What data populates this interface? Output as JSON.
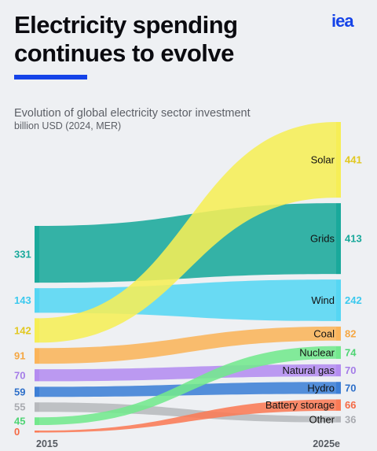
{
  "header": {
    "title": "Electricity spending continues to evolve",
    "logo": "iea",
    "subtitle": "Evolution of global electricity sector investment",
    "units": "billion USD (2024, MER)"
  },
  "chart_data": {
    "type": "sankey",
    "title": "Electricity spending continues to evolve",
    "subtitle": "Evolution of global electricity sector investment",
    "unit": "billion USD (2024, MER)",
    "x": [
      "2015",
      "2025e"
    ],
    "series": [
      {
        "name": "Solar",
        "values": [
          142,
          441
        ],
        "color": "#f6ee56"
      },
      {
        "name": "Grids",
        "values": [
          331,
          413
        ],
        "color": "#1aa99b"
      },
      {
        "name": "Wind",
        "values": [
          143,
          242
        ],
        "color": "#56d6f3"
      },
      {
        "name": "Coal",
        "values": [
          91,
          82
        ],
        "color": "#fbb45a"
      },
      {
        "name": "Nuclear",
        "values": [
          45,
          74
        ],
        "color": "#73e88d"
      },
      {
        "name": "Natural gas",
        "values": [
          70,
          70
        ],
        "color": "#b48cf0"
      },
      {
        "name": "Hydro",
        "values": [
          59,
          70
        ],
        "color": "#3d7fd6"
      },
      {
        "name": "Battery storage",
        "values": [
          0,
          66
        ],
        "color": "#fb7a55"
      },
      {
        "name": "Other",
        "values": [
          55,
          36
        ],
        "color": "#b7b9bd"
      }
    ],
    "label_colors": {
      "Solar": "#e2c820",
      "Grids": "#1aa99b",
      "Wind": "#3cc9ee",
      "Coal": "#f5a743",
      "Nuclear": "#4fd474",
      "Natural gas": "#a57de8",
      "Hydro": "#2d6fc9",
      "Battery storage": "#f56a45",
      "Other": "#a9abb0"
    }
  }
}
